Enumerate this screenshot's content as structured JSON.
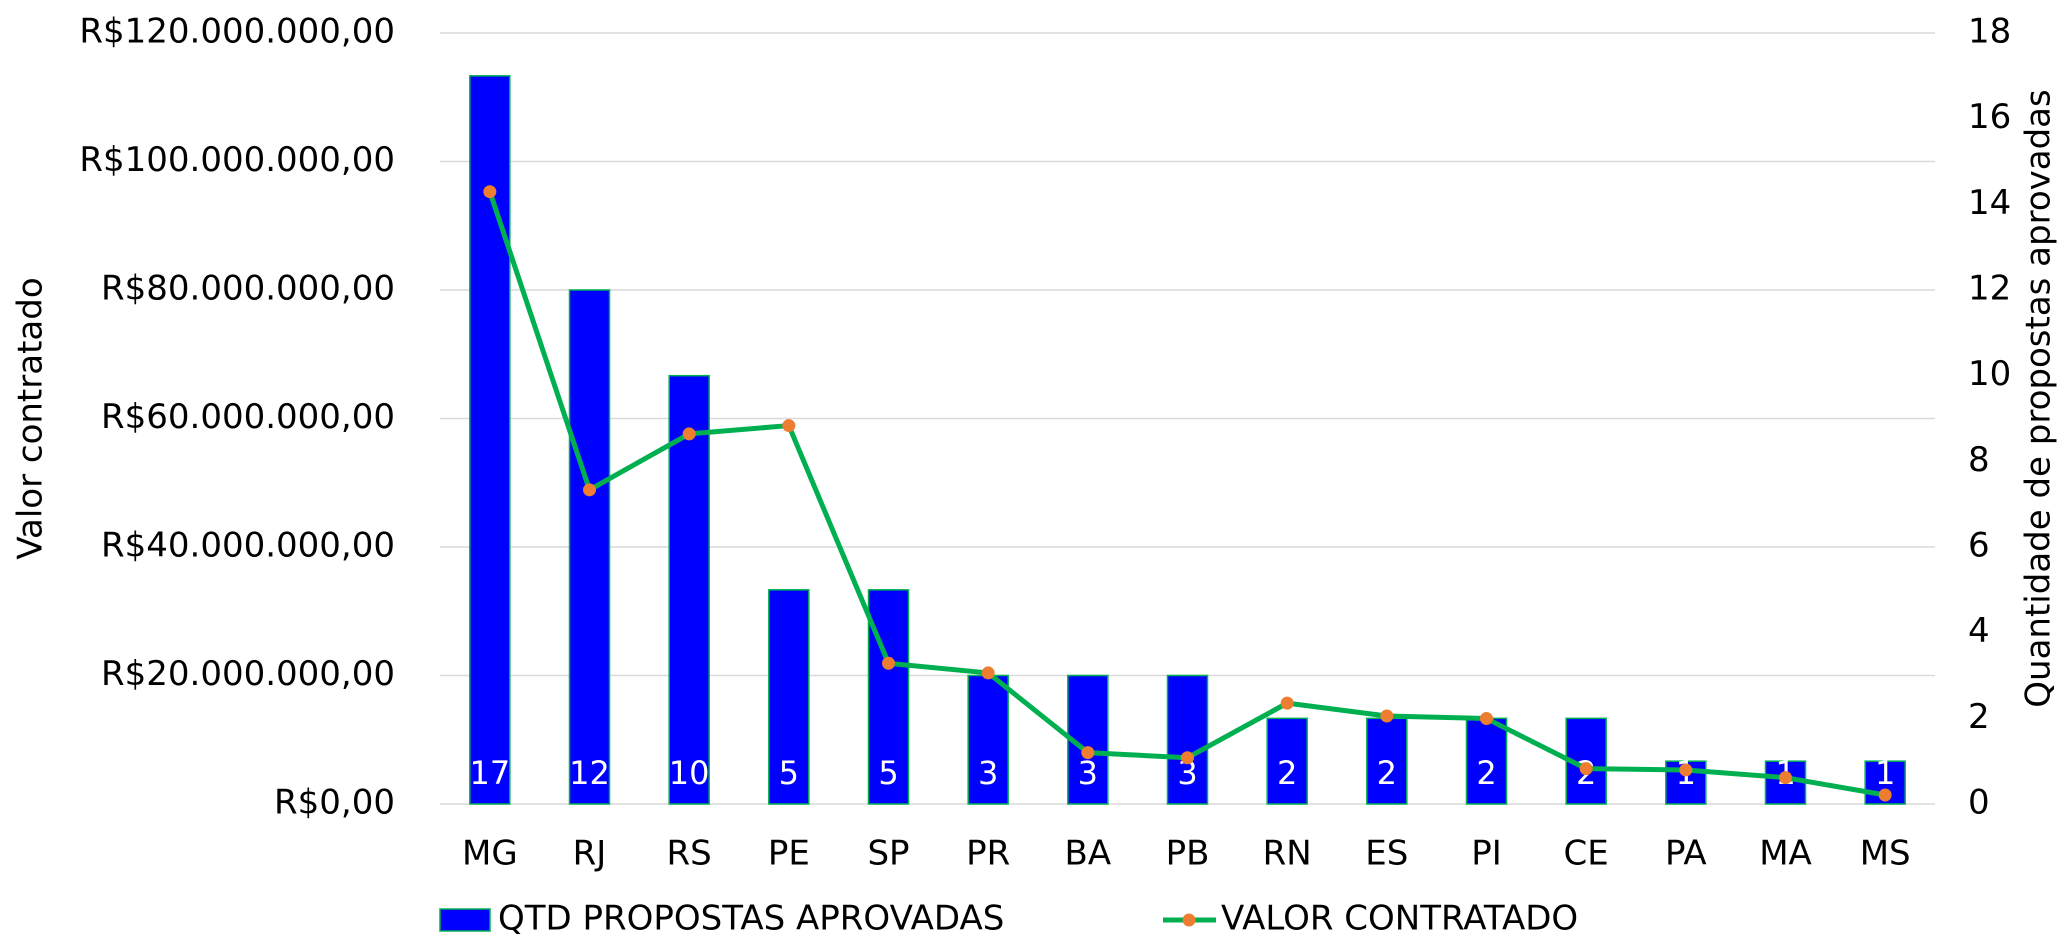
{
  "chart_data": {
    "type": "bar_line",
    "categories": [
      "MG",
      "RJ",
      "RS",
      "PE",
      "SP",
      "PR",
      "BA",
      "PB",
      "RN",
      "ES",
      "PI",
      "CE",
      "PA",
      "MA",
      "MS"
    ],
    "ylabel": "Valor contratado",
    "y2label": "Quantidade de propostas aprovadas",
    "ylim": [
      0,
      120000000
    ],
    "yticks": [
      {
        "value": 0,
        "label": "R$0,00"
      },
      {
        "value": 20000000,
        "label": "R$20.000.000,00"
      },
      {
        "value": 40000000,
        "label": "R$40.000.000,00"
      },
      {
        "value": 60000000,
        "label": "R$60.000.000,00"
      },
      {
        "value": 80000000,
        "label": "R$80.000.000,00"
      },
      {
        "value": 100000000,
        "label": "R$100.000.000,00"
      },
      {
        "value": 120000000,
        "label": "R$120.000.000,00"
      }
    ],
    "y2lim": [
      0,
      18
    ],
    "y2ticks": [
      0,
      2,
      4,
      6,
      8,
      10,
      12,
      14,
      16,
      18
    ],
    "grid": true,
    "series": [
      {
        "name": "QTD PROPOSTAS APROVADAS",
        "type": "bar",
        "axis": "y2",
        "color": "#0000ff",
        "edge_color": "#00b050",
        "values": [
          17,
          12,
          10,
          5,
          5,
          3,
          3,
          3,
          2,
          2,
          2,
          2,
          1,
          1,
          1
        ]
      },
      {
        "name": "VALOR CONTRATADO",
        "type": "line",
        "axis": "y",
        "color": "#00b050",
        "marker_color": "#ed7d31",
        "values": [
          95300000,
          48900000,
          57600000,
          58900000,
          21900000,
          20400000,
          8000000,
          7200000,
          15700000,
          13700000,
          13300000,
          5500000,
          5300000,
          4100000,
          1400000
        ]
      }
    ],
    "legend": "bottom"
  }
}
